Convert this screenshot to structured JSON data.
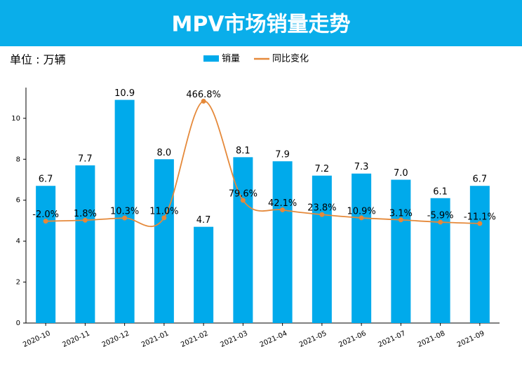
{
  "chart_data": {
    "type": "bar",
    "title": "MPV市场销量走势",
    "unit_label": "单位 : 万辆",
    "categories": [
      "2020-10",
      "2020-11",
      "2020-12",
      "2021-01",
      "2021-02",
      "2021-03",
      "2021-04",
      "2021-05",
      "2021-06",
      "2021-07",
      "2021-08",
      "2021-09"
    ],
    "series": [
      {
        "name": "销量",
        "type": "bar",
        "color": "#00aaeb",
        "values": [
          6.7,
          7.7,
          10.9,
          8.0,
          4.7,
          8.1,
          7.9,
          7.2,
          7.3,
          7.0,
          6.1,
          6.7
        ],
        "value_labels": [
          "6.7",
          "7.7",
          "10.9",
          "8.0",
          "4.7",
          "8.1",
          "7.9",
          "7.2",
          "7.3",
          "7.0",
          "6.1",
          "6.7"
        ]
      },
      {
        "name": "同比变化",
        "type": "line",
        "axis": "y2",
        "color": "#e5893a",
        "values": [
          -2.0,
          1.8,
          10.3,
          11.0,
          466.8,
          79.6,
          42.1,
          23.8,
          10.9,
          3.1,
          -5.9,
          -11.1
        ],
        "value_labels": [
          "-2.0%",
          "1.8%",
          "10.3%",
          "11.0%",
          "466.8%",
          "79.6%",
          "42.1%",
          "23.8%",
          "10.9%",
          "3.1%",
          "-5.9%",
          "-11.1%"
        ]
      }
    ],
    "ylim": [
      0,
      11.5
    ],
    "yticks": [
      0,
      2,
      4,
      6,
      8,
      10
    ],
    "y2lim": [
      -400,
      520
    ],
    "legend": "top"
  }
}
